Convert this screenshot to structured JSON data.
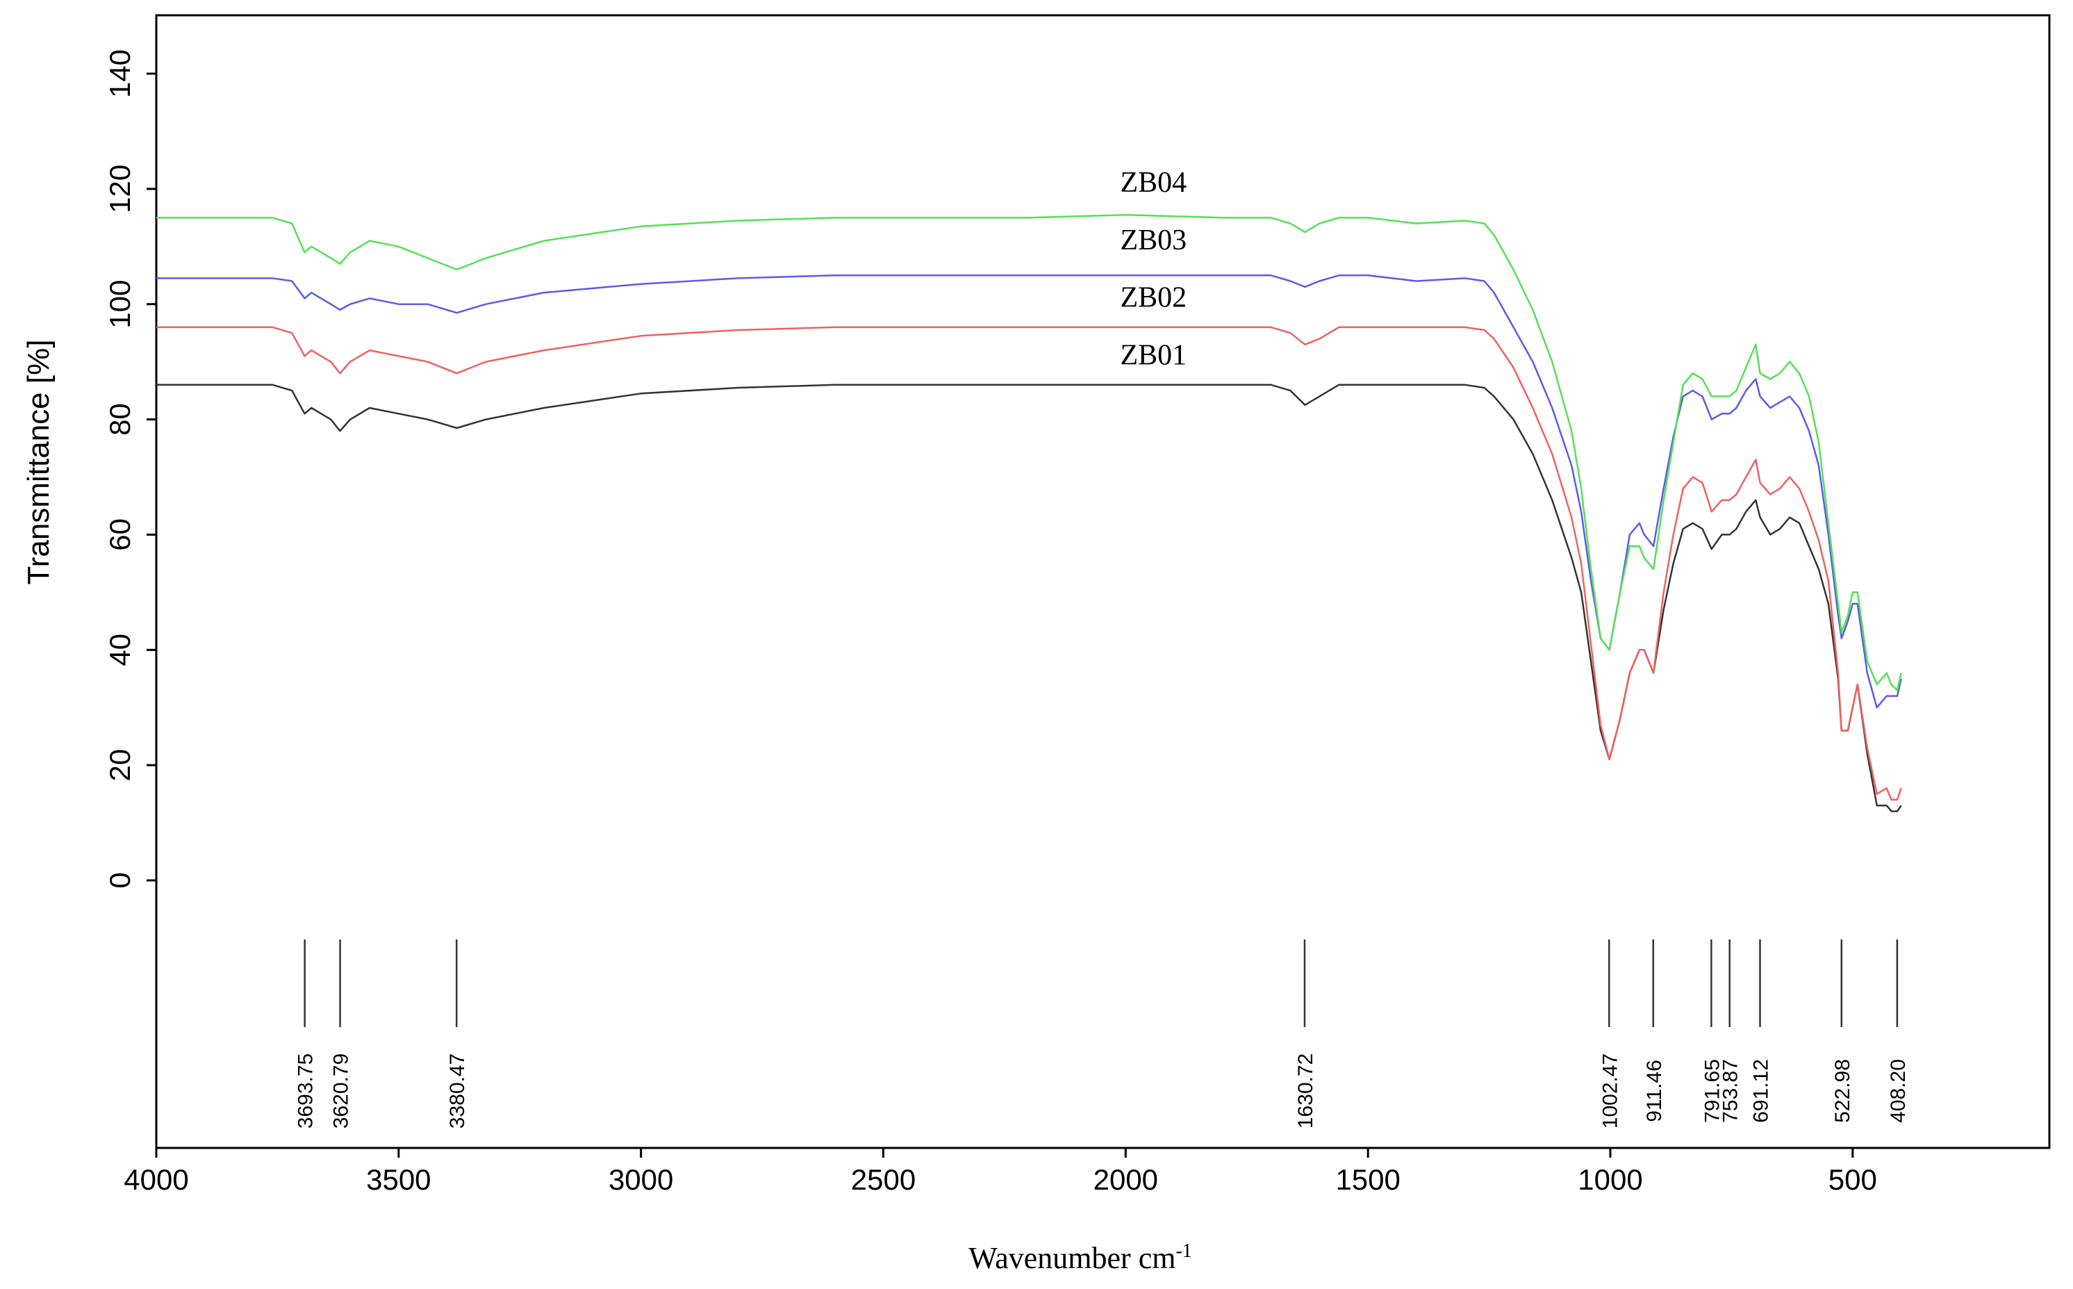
{
  "chart_data": {
    "type": "line",
    "title": "",
    "xlabel": "Wavenumber cm",
    "xlabel_superscript": "-1",
    "ylabel": "Transmittance [%]",
    "xlim": [
      4000,
      400
    ],
    "ylim": [
      -10,
      150
    ],
    "x_reversed": true,
    "grid": false,
    "xticks": [
      {
        "value": 4000,
        "label": "4000"
      },
      {
        "value": 3500,
        "label": "3500"
      },
      {
        "value": 3000,
        "label": "3000"
      },
      {
        "value": 2500,
        "label": "2500"
      },
      {
        "value": 2000,
        "label": "2000"
      },
      {
        "value": 1500,
        "label": "1500"
      },
      {
        "value": 1000,
        "label": "1000"
      },
      {
        "value": 500,
        "label": "500"
      }
    ],
    "yticks": [
      {
        "value": 0,
        "label": "0"
      },
      {
        "value": 20,
        "label": "20"
      },
      {
        "value": 40,
        "label": "40"
      },
      {
        "value": 60,
        "label": "60"
      },
      {
        "value": 80,
        "label": "80"
      },
      {
        "value": 100,
        "label": "100"
      },
      {
        "value": 120,
        "label": "120"
      },
      {
        "value": 140,
        "label": "140"
      }
    ],
    "peaks": [
      {
        "value": 3693.75,
        "label": "3693.75"
      },
      {
        "value": 3620.79,
        "label": "3620.79"
      },
      {
        "value": 3380.47,
        "label": "3380.47"
      },
      {
        "value": 1630.72,
        "label": "1630.72"
      },
      {
        "value": 1002.47,
        "label": "1002.47"
      },
      {
        "value": 911.46,
        "label": "911.46"
      },
      {
        "value": 791.65,
        "label": "791.65"
      },
      {
        "value": 753.87,
        "label": "753.87"
      },
      {
        "value": 691.12,
        "label": "691.12"
      },
      {
        "value": 522.98,
        "label": "522.98"
      },
      {
        "value": 408.2,
        "label": "408.20"
      }
    ],
    "series": [
      {
        "name": "ZB01",
        "color": "#333333",
        "label_at": [
          2000,
          90
        ],
        "x": [
          4000,
          3760,
          3720,
          3694,
          3680,
          3660,
          3640,
          3621,
          3600,
          3560,
          3500,
          3440,
          3380,
          3320,
          3200,
          3000,
          2800,
          2600,
          2400,
          2200,
          2000,
          1800,
          1700,
          1660,
          1630,
          1600,
          1560,
          1500,
          1400,
          1300,
          1260,
          1240,
          1200,
          1160,
          1120,
          1080,
          1060,
          1040,
          1020,
          1002,
          980,
          960,
          940,
          930,
          911,
          890,
          870,
          850,
          830,
          810,
          791,
          770,
          754,
          740,
          720,
          700,
          691,
          670,
          650,
          630,
          610,
          590,
          570,
          550,
          530,
          523,
          510,
          500,
          490,
          470,
          450,
          430,
          420,
          408,
          400
        ],
        "y": [
          86,
          86,
          85,
          81,
          82,
          81,
          80,
          78,
          80,
          82,
          81,
          80,
          78.5,
          80,
          82,
          84.5,
          85.5,
          86,
          86,
          86,
          86,
          86,
          86,
          85,
          82.5,
          84,
          86,
          86,
          86,
          86,
          85.5,
          84,
          80,
          74,
          66,
          56,
          50,
          38,
          26,
          21,
          28,
          36,
          40,
          40,
          36,
          47,
          55,
          61,
          62,
          61,
          57.5,
          60,
          60,
          61,
          64,
          66,
          63,
          60,
          61,
          63,
          62,
          58,
          54,
          48,
          35,
          26,
          26,
          30,
          34,
          22,
          13,
          13,
          12,
          12,
          13
        ]
      },
      {
        "name": "ZB02",
        "color": "#f06060",
        "label_at": [
          2000,
          100
        ],
        "x": [
          4000,
          3760,
          3720,
          3694,
          3680,
          3660,
          3640,
          3621,
          3600,
          3560,
          3500,
          3440,
          3380,
          3320,
          3200,
          3000,
          2800,
          2600,
          2400,
          2200,
          2000,
          1800,
          1700,
          1660,
          1630,
          1600,
          1560,
          1500,
          1400,
          1300,
          1260,
          1240,
          1200,
          1160,
          1120,
          1080,
          1060,
          1040,
          1020,
          1002,
          980,
          960,
          940,
          930,
          911,
          890,
          870,
          850,
          830,
          810,
          791,
          770,
          754,
          740,
          720,
          700,
          691,
          670,
          650,
          630,
          610,
          590,
          570,
          550,
          530,
          523,
          510,
          500,
          490,
          470,
          450,
          430,
          420,
          408,
          400
        ],
        "y": [
          96,
          96,
          95,
          91,
          92,
          91,
          90,
          88,
          90,
          92,
          91,
          90,
          88,
          90,
          92,
          94.5,
          95.5,
          96,
          96,
          96,
          96,
          96,
          96,
          95,
          93,
          94,
          96,
          96,
          96,
          96,
          95.5,
          94,
          89,
          82,
          74,
          63,
          55,
          41,
          27,
          21,
          28,
          36,
          40,
          40,
          36,
          50,
          60,
          68,
          70,
          69,
          64,
          66,
          66,
          67,
          70,
          73,
          69,
          67,
          68,
          70,
          68,
          64,
          59,
          52,
          36,
          26,
          26,
          30,
          34,
          23,
          15,
          16,
          14,
          14,
          16
        ]
      },
      {
        "name": "ZB03",
        "color": "#5a5aee",
        "label_at": [
          2000,
          110
        ],
        "x": [
          4000,
          3760,
          3720,
          3694,
          3680,
          3660,
          3640,
          3621,
          3600,
          3560,
          3500,
          3440,
          3380,
          3320,
          3200,
          3000,
          2800,
          2600,
          2400,
          2200,
          2000,
          1800,
          1700,
          1660,
          1630,
          1600,
          1560,
          1500,
          1400,
          1300,
          1260,
          1240,
          1200,
          1160,
          1120,
          1080,
          1060,
          1040,
          1020,
          1002,
          980,
          960,
          940,
          930,
          911,
          890,
          870,
          850,
          830,
          810,
          791,
          770,
          754,
          740,
          720,
          700,
          691,
          670,
          650,
          630,
          610,
          590,
          570,
          550,
          530,
          523,
          510,
          500,
          490,
          470,
          450,
          430,
          420,
          408,
          400
        ],
        "y": [
          104.5,
          104.5,
          104,
          101,
          102,
          101,
          100,
          99,
          100,
          101,
          100,
          100,
          98.5,
          100,
          102,
          103.5,
          104.5,
          105,
          105,
          105,
          105,
          105,
          105,
          104,
          103,
          104,
          105,
          105,
          104,
          104.5,
          104,
          102,
          96,
          90,
          82,
          72,
          64,
          52,
          42,
          40,
          50,
          60,
          62,
          60,
          58,
          68,
          77,
          84,
          85,
          84,
          80,
          81,
          81,
          82,
          85,
          87,
          84,
          82,
          83,
          84,
          82,
          78,
          72,
          60,
          46,
          42,
          45,
          48,
          48,
          36,
          30,
          32,
          32,
          32,
          35
        ]
      },
      {
        "name": "ZB04",
        "color": "#55e055",
        "label_at": [
          2000,
          120
        ],
        "x": [
          4000,
          3760,
          3720,
          3694,
          3680,
          3660,
          3640,
          3621,
          3600,
          3560,
          3500,
          3440,
          3380,
          3320,
          3200,
          3000,
          2800,
          2600,
          2400,
          2200,
          2000,
          1800,
          1700,
          1660,
          1630,
          1600,
          1560,
          1500,
          1400,
          1300,
          1260,
          1240,
          1200,
          1160,
          1120,
          1080,
          1060,
          1040,
          1020,
          1002,
          980,
          960,
          940,
          930,
          911,
          890,
          870,
          850,
          830,
          810,
          791,
          770,
          754,
          740,
          720,
          700,
          691,
          670,
          650,
          630,
          610,
          590,
          570,
          550,
          530,
          523,
          510,
          500,
          490,
          470,
          450,
          430,
          420,
          408,
          400
        ],
        "y": [
          115,
          115,
          114,
          109,
          110,
          109,
          108,
          107,
          109,
          111,
          110,
          108,
          106,
          108,
          111,
          113.5,
          114.5,
          115,
          115,
          115,
          115.5,
          115,
          115,
          114,
          112.5,
          114,
          115,
          115,
          114,
          114.5,
          114,
          112,
          106,
          99,
          90,
          78,
          68,
          54,
          42,
          40,
          50,
          58,
          58,
          56,
          54,
          66,
          76,
          86,
          88,
          87,
          84,
          84,
          84,
          85,
          89,
          93,
          88,
          87,
          88,
          90,
          88,
          84,
          76,
          62,
          48,
          43,
          46,
          50,
          50,
          38,
          34,
          36,
          34,
          33,
          36
        ]
      }
    ]
  }
}
